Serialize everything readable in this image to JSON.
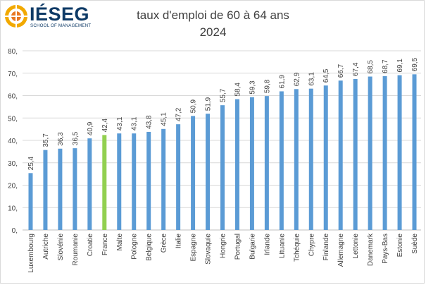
{
  "logo": {
    "wordmark": "IÉSEG",
    "tagline": "SCHOOL OF MANAGEMENT"
  },
  "colors": {
    "bar": "#5b9bd5",
    "highlight": "#92d050",
    "grid": "#d9d9d9",
    "text": "#404040",
    "logo": "#0e3a66"
  },
  "chart_data": {
    "type": "bar",
    "title": "taux d'emploi de 60 à 64 ans",
    "subtitle": "2024",
    "ylim": [
      0,
      80
    ],
    "y_ticks": [
      "0,",
      "10,",
      "20,",
      "30,",
      "40,",
      "50,",
      "60,",
      "70,",
      "80,"
    ],
    "grid": true,
    "highlight_category": "France",
    "categories": [
      "Luxembourg",
      "Autriche",
      "Slovénie",
      "Roumanie",
      "Croatie",
      "France",
      "Malte",
      "Pologne",
      "Belgique",
      "Grèce",
      "Italie",
      "Espagne",
      "Slovaquie",
      "Hongrie",
      "Portugal",
      "Bulgarie",
      "Irlande",
      "Lituanie",
      "Tchéquie",
      "Chypre",
      "Finlande",
      "Allemagne",
      "Lettonie",
      "Danemark",
      "Pays-Bas",
      "Estonie",
      "Suède"
    ],
    "values": [
      25.4,
      35.7,
      36.3,
      36.5,
      40.9,
      42.4,
      43.1,
      43.1,
      43.8,
      45.1,
      47.2,
      50.9,
      51.9,
      55.7,
      58.4,
      59.3,
      59.8,
      61.9,
      62.9,
      63.1,
      64.5,
      66.7,
      67.4,
      68.5,
      68.7,
      69.1,
      69.5
    ],
    "value_labels": [
      "25,4",
      "35,7",
      "36,3",
      "36,5",
      "40,9",
      "42,4",
      "43,1",
      "43,1",
      "43,8",
      "45,1",
      "47,2",
      "50,9",
      "51,9",
      "55,7",
      "58,4",
      "59,3",
      "59,8",
      "61,9",
      "62,9",
      "63,1",
      "64,5",
      "66,7",
      "67,4",
      "68,5",
      "68,7",
      "69,1",
      "69,5"
    ]
  }
}
